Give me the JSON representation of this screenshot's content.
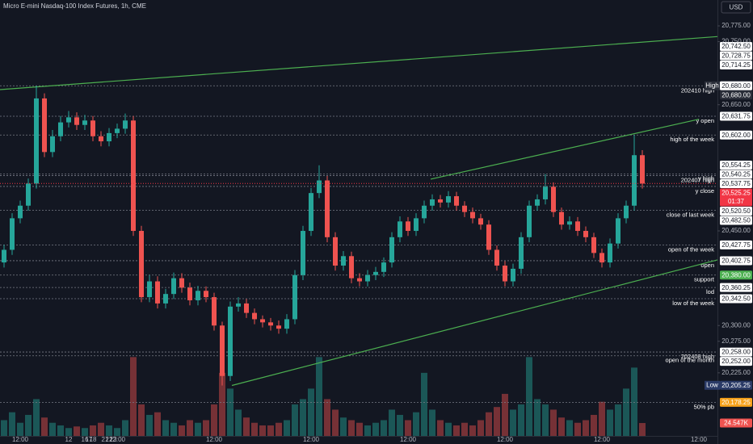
{
  "chart_data": {
    "type": "candlestick",
    "title": "Micro E-mini Nasdaq-100 Index Futures, 1h, CME",
    "currency": "USD",
    "up_color": "#26a69a",
    "down_color": "#ef5350",
    "xlim": [
      -5,
      172.6
    ],
    "ylim": [
      20125,
      20816
    ],
    "xticks": [
      {
        "value": 0,
        "label": "12:00"
      },
      12,
      {
        "value": 24,
        "label": "12:00"
      },
      16,
      {
        "value": 48,
        "label": "12:00"
      },
      17,
      {
        "value": 72,
        "label": "12:00"
      },
      18,
      {
        "value": 96,
        "label": "12:00"
      },
      21,
      {
        "value": 120,
        "label": "12:00"
      },
      22,
      {
        "value": 144,
        "label": "12:00"
      },
      23,
      {
        "value": 168,
        "label": "12:00"
      }
    ],
    "xtick_labels_note_free": null,
    "yticks": [
      {
        "value": 20775,
        "label": "20,775.00"
      },
      {
        "value": 20750,
        "label": "20,750.00"
      },
      {
        "value": 20650,
        "label": "20,650.00"
      },
      {
        "value": 20450,
        "label": "20,450.00"
      },
      {
        "value": 20300,
        "label": "20,300.00"
      },
      {
        "value": 20275,
        "label": "20,275.00"
      },
      {
        "value": 20225,
        "label": "20,225.00"
      }
    ],
    "x": [
      -4,
      -2,
      0,
      2,
      4,
      6,
      8,
      10,
      12,
      14,
      16,
      18,
      20,
      22,
      24,
      26,
      28,
      30,
      32,
      34,
      36,
      38,
      40,
      42,
      44,
      46,
      48,
      50,
      52,
      54,
      56,
      58,
      60,
      62,
      64,
      66,
      68,
      70,
      72,
      74,
      76,
      78,
      80,
      82,
      84,
      86,
      88,
      90,
      92,
      94,
      96,
      98,
      100,
      102,
      104,
      106,
      108,
      110,
      112,
      114,
      116,
      118,
      120,
      122,
      124,
      126,
      128,
      130,
      132,
      134,
      136,
      138,
      140,
      142,
      144,
      146,
      148,
      150,
      152,
      154
    ],
    "open": [
      20400,
      20420,
      20470,
      20490,
      20525,
      20660,
      20575,
      20600,
      20622,
      20630,
      20618,
      20625,
      20600,
      20592,
      20605,
      20612,
      20625,
      20450,
      20345,
      20370,
      20335,
      20350,
      20375,
      20360,
      20340,
      20355,
      20345,
      20300,
      20220,
      20330,
      20335,
      20320,
      20310,
      20305,
      20300,
      20295,
      20310,
      20380,
      20450,
      20510,
      20530,
      20440,
      20395,
      20410,
      20375,
      20370,
      20380,
      20385,
      20400,
      20440,
      20465,
      20450,
      20470,
      20490,
      20500,
      20495,
      20505,
      20490,
      20480,
      20470,
      20460,
      20420,
      20395,
      20370,
      20390,
      20440,
      20490,
      20500,
      20520,
      20480,
      20460,
      20465,
      20450,
      20440,
      20415,
      20400,
      20430,
      20470,
      20490,
      20570
    ],
    "high": [
      20428,
      20478,
      20498,
      20533,
      20680,
      20668,
      20610,
      20632,
      20640,
      20638,
      20634,
      20632,
      20608,
      20613,
      20620,
      20636,
      20632,
      20458,
      20380,
      20378,
      20358,
      20384,
      20383,
      20368,
      20363,
      20362,
      20352,
      20306,
      20338,
      20345,
      20342,
      20327,
      20316,
      20312,
      20308,
      20318,
      20388,
      20458,
      20518,
      20554,
      20537,
      20448,
      20418,
      20417,
      20383,
      20388,
      20393,
      20408,
      20448,
      20473,
      20472,
      20478,
      20498,
      20508,
      20507,
      20513,
      20512,
      20497,
      20487,
      20477,
      20467,
      20427,
      20402,
      20398,
      20448,
      20498,
      20508,
      20540,
      20527,
      20487,
      20473,
      20472,
      20457,
      20447,
      20422,
      20438,
      20478,
      20498,
      20602,
      20578
    ],
    "low": [
      20392,
      20412,
      20462,
      20482,
      20517,
      20567,
      20567,
      20592,
      20614,
      20610,
      20610,
      20592,
      20584,
      20584,
      20597,
      20604,
      20442,
      20337,
      20337,
      20327,
      20327,
      20342,
      20352,
      20332,
      20332,
      20337,
      20292,
      20205,
      20212,
      20322,
      20312,
      20302,
      20297,
      20292,
      20287,
      20287,
      20302,
      20372,
      20442,
      20502,
      20432,
      20387,
      20387,
      20367,
      20362,
      20362,
      20372,
      20377,
      20392,
      20432,
      20442,
      20442,
      20462,
      20482,
      20487,
      20487,
      20482,
      20472,
      20462,
      20452,
      20412,
      20387,
      20362,
      20362,
      20382,
      20432,
      20482,
      20492,
      20472,
      20452,
      20452,
      20442,
      20432,
      20407,
      20392,
      20392,
      20422,
      20462,
      20482,
      20517
    ],
    "close": [
      20420,
      20470,
      20490,
      20525,
      20660,
      20575,
      20600,
      20622,
      20630,
      20618,
      20625,
      20600,
      20592,
      20605,
      20612,
      20625,
      20450,
      20345,
      20370,
      20335,
      20350,
      20375,
      20360,
      20340,
      20355,
      20345,
      20300,
      20220,
      20330,
      20335,
      20320,
      20310,
      20305,
      20300,
      20295,
      20310,
      20380,
      20450,
      20510,
      20530,
      20440,
      20395,
      20410,
      20375,
      20370,
      20380,
      20385,
      20400,
      20440,
      20465,
      20450,
      20470,
      20490,
      20500,
      20495,
      20505,
      20490,
      20480,
      20470,
      20460,
      20420,
      20395,
      20370,
      20390,
      20440,
      20490,
      20500,
      20520,
      20480,
      20460,
      20465,
      20450,
      20440,
      20415,
      20400,
      20430,
      20470,
      20490,
      20570,
      20525
    ],
    "volume": [
      30000,
      45000,
      25000,
      40000,
      70000,
      35000,
      25000,
      20000,
      15000,
      18000,
      15000,
      20000,
      25000,
      20000,
      15000,
      30000,
      150000,
      60000,
      40000,
      45000,
      30000,
      25000,
      20000,
      30000,
      25000,
      30000,
      60000,
      120000,
      90000,
      50000,
      35000,
      25000,
      20000,
      20000,
      25000,
      30000,
      60000,
      70000,
      90000,
      150000,
      70000,
      50000,
      35000,
      30000,
      25000,
      20000,
      25000,
      30000,
      50000,
      40000,
      30000,
      45000,
      120000,
      50000,
      30000,
      25000,
      20000,
      25000,
      20000,
      30000,
      45000,
      55000,
      80000,
      50000,
      60000,
      150000,
      70000,
      60000,
      50000,
      35000,
      30000,
      25000,
      30000,
      40000,
      65000,
      50000,
      60000,
      90000,
      130000,
      24547
    ],
    "vlim": [
      0,
      215000
    ],
    "volume_last_label": "24.547K",
    "last_price": {
      "value": 20525.25,
      "value_label": "20,525.25",
      "countdown": "01:37",
      "color": "#f23645"
    },
    "high_mark": {
      "label": "High",
      "value": 20680,
      "value_label": "20,680.00"
    },
    "low_mark": {
      "label": "Low",
      "value": 20205.25,
      "value_label": "20,205.25"
    },
    "tags": [
      {
        "value": 20742.5,
        "label": "20,742.50"
      },
      {
        "value": 20728.75,
        "label": "20,728.75"
      },
      {
        "value": 20714.25,
        "label": "20,714.25"
      },
      {
        "value": 20554.25,
        "label": "20,554.25"
      }
    ],
    "levels": [
      {
        "label": "202410 high",
        "value": 20680,
        "value_label": "20,680.00"
      },
      {
        "label": "y open",
        "value": 20631.75,
        "value_label": "20,631.75"
      },
      {
        "label": "high of the week",
        "value": 20602,
        "value_label": "20,602.00"
      },
      {
        "label": "y high",
        "value": 20540.25,
        "value_label": "20,540.25"
      },
      {
        "label": "202407 high",
        "value": 20537.75,
        "value_label": "20,537.75"
      },
      {
        "label": "y close",
        "value": 20520.5,
        "value_label": "20,520.50"
      },
      {
        "label": "close of last week",
        "value": 20482.5,
        "value_label": "20,482.50"
      },
      {
        "label": "open of the week",
        "value": 20427.75,
        "value_label": "20,427.75"
      },
      {
        "label": "open",
        "value": 20402.75,
        "value_label": "20,402.75"
      },
      {
        "label": "support",
        "value": 20380,
        "value_label": "20,380.00",
        "tag_color": "#4caf50"
      },
      {
        "label": "lod",
        "value": 20360.25,
        "value_label": "20,360.25"
      },
      {
        "label": "low of the week",
        "value": 20342.5,
        "value_label": "20,342.50"
      },
      {
        "label": "202408 high",
        "value": 20258,
        "value_label": "20,258.00"
      },
      {
        "label": "open of the month",
        "value": 20252,
        "value_label": "20,252.00"
      },
      {
        "label": "50% pb",
        "value": 20178.25,
        "value_label": "20,178.25",
        "tag_color": "#f7a21b"
      }
    ],
    "trendline_color": "#4caf50",
    "trendlines": [
      {
        "x": [
          -5,
          172.6
        ],
        "y": [
          20674,
          20758
        ]
      },
      {
        "x": [
          101.6,
          168
        ],
        "y": [
          20532,
          20627
        ]
      },
      {
        "x": [
          52.4,
          172.6
        ],
        "y": [
          20205,
          20404
        ]
      }
    ]
  }
}
